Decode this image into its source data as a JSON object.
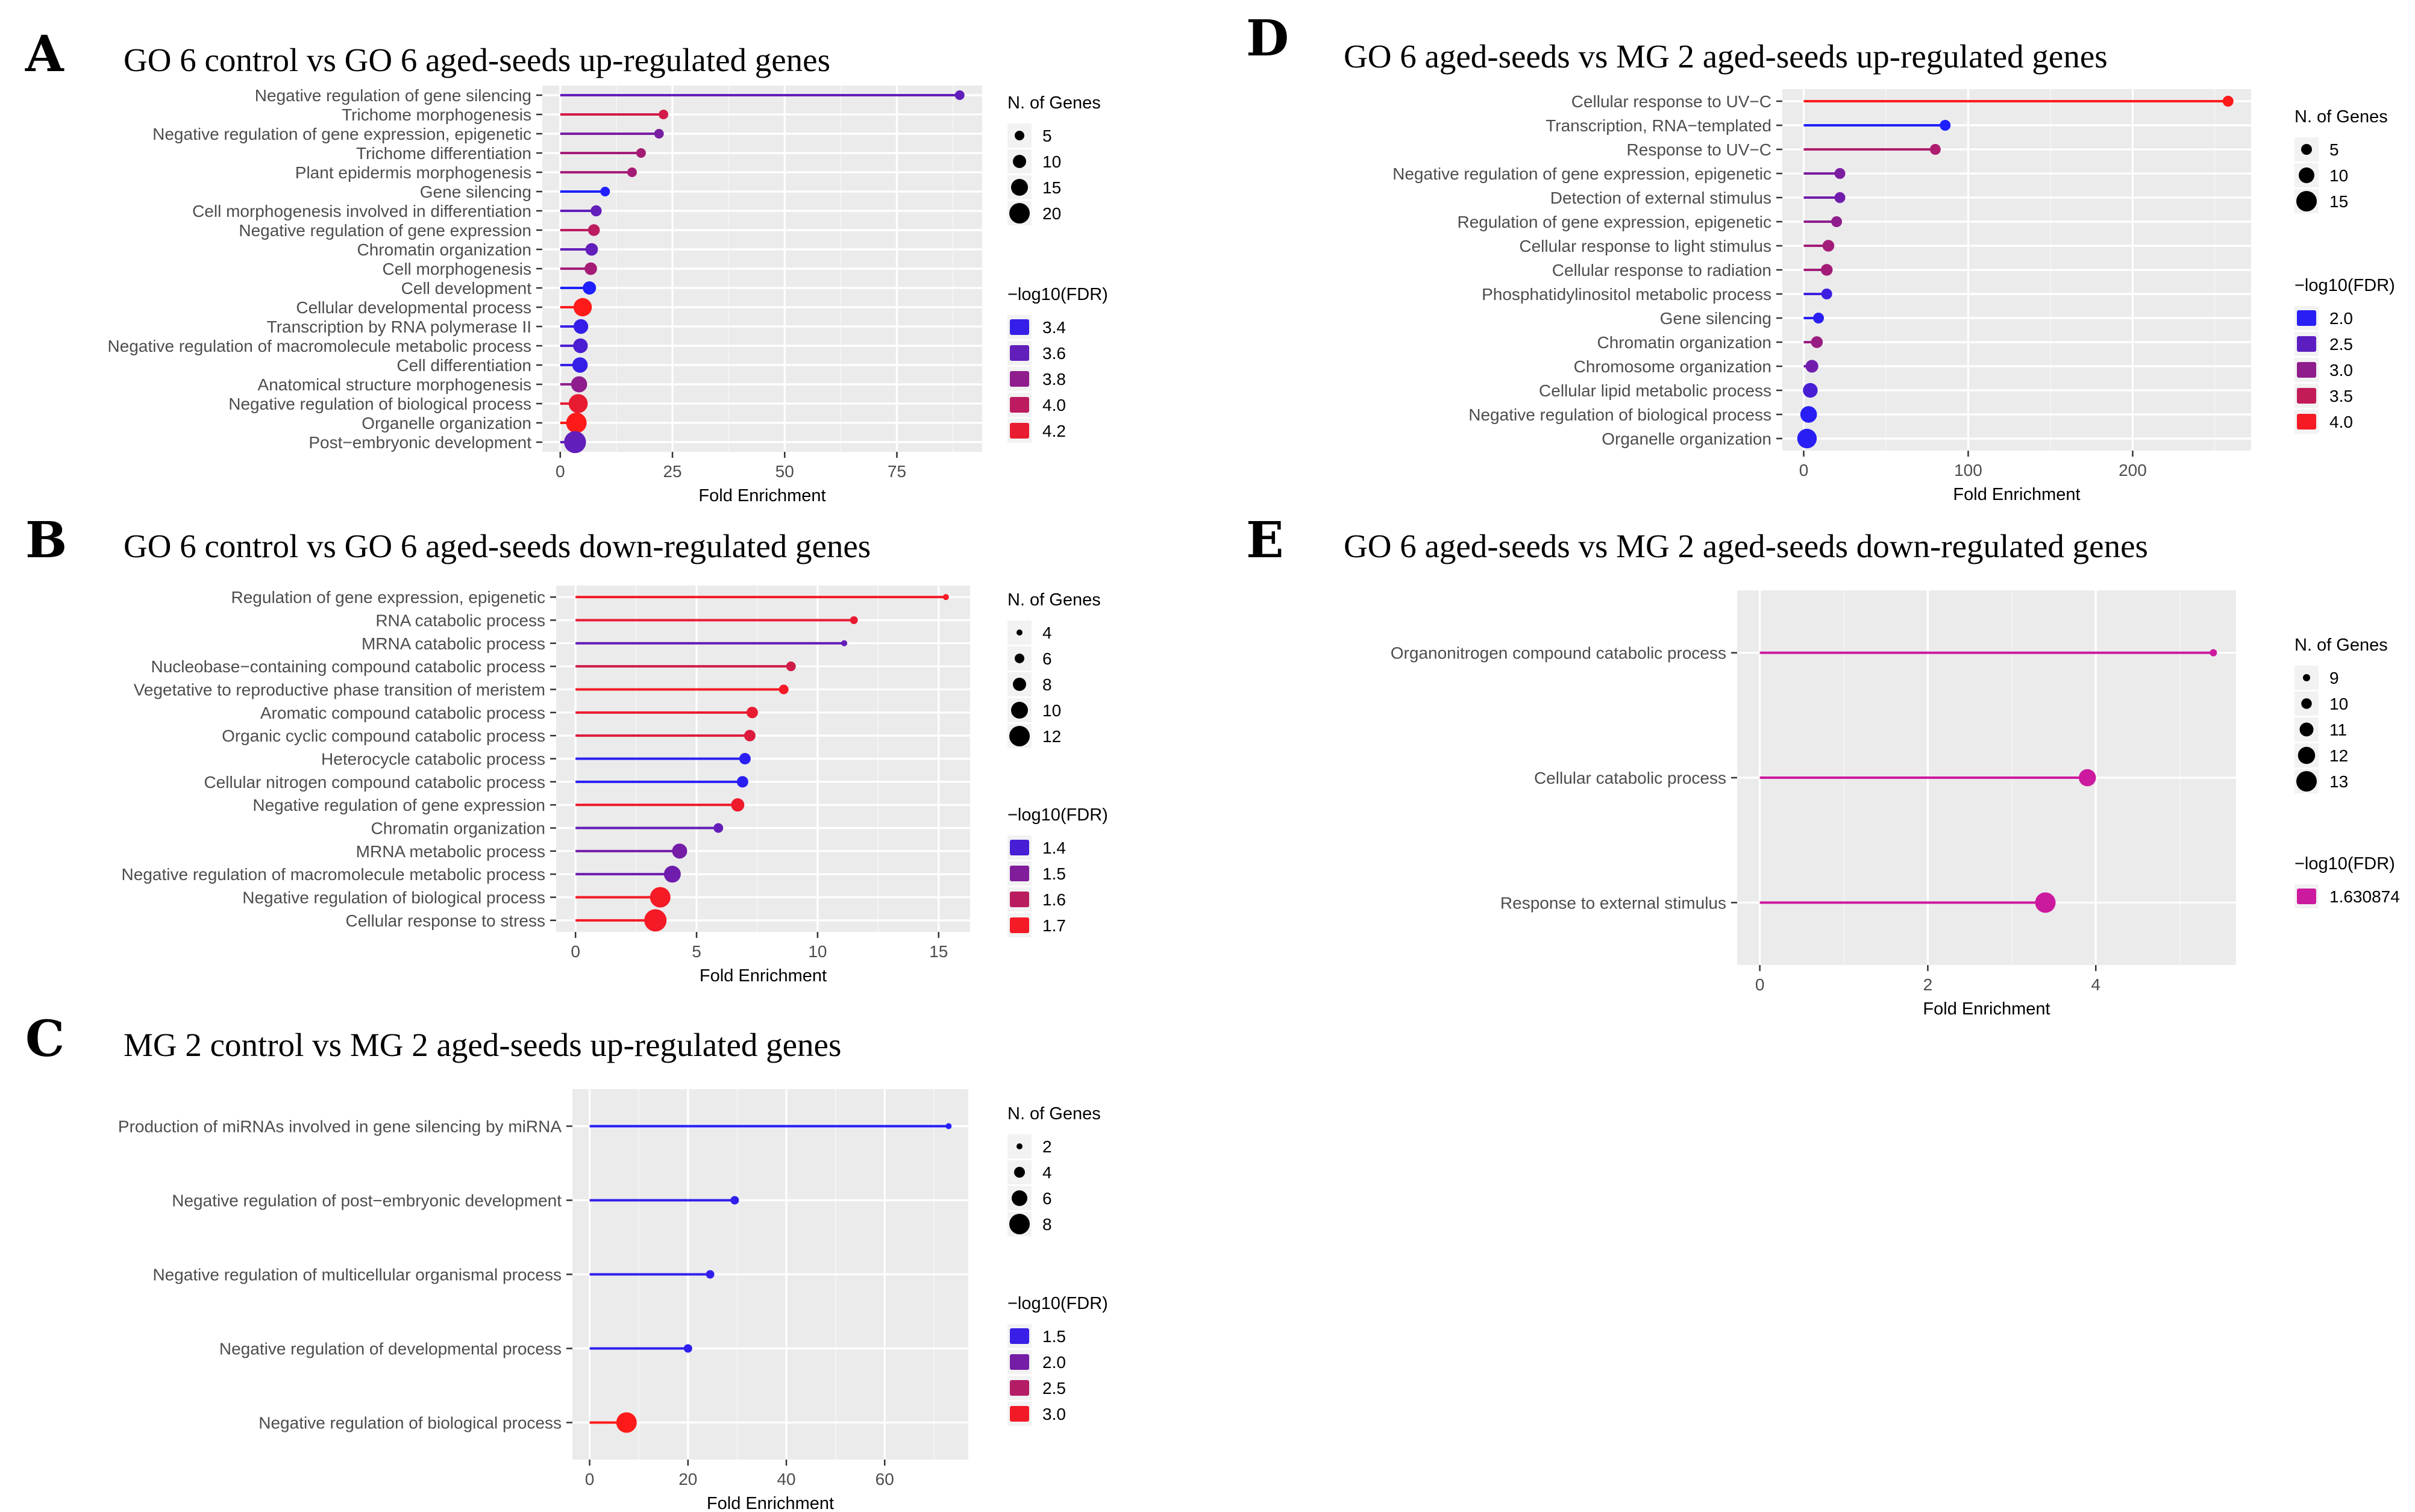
{
  "chart_data": [
    {
      "letter": "A",
      "type": "lollipop",
      "title": "GO 6 control vs GO 6 aged-seeds up-regulated genes",
      "xlabel": "Fold Enrichment",
      "xlim": [
        -4,
        94
      ],
      "xticks": [
        0,
        25,
        50,
        75
      ],
      "categories": [
        "Negative regulation of gene silencing",
        "Trichome morphogenesis",
        "Negative regulation of gene expression, epigenetic",
        "Trichome differentiation",
        "Plant epidermis morphogenesis",
        "Gene silencing",
        "Cell morphogenesis involved in differentiation",
        "Negative regulation of gene expression",
        "Chromatin organization",
        "Cell morphogenesis",
        "Cell development",
        "Cellular developmental process",
        "Transcription by RNA polymerase II",
        "Negative regulation of macromolecule metabolic process",
        "Cell differentiation",
        "Anatomical structure morphogenesis",
        "Negative regulation of biological process",
        "Organelle organization",
        "Post−embryonic development"
      ],
      "values": [
        89,
        23,
        22,
        18,
        16,
        10,
        8,
        7.5,
        7,
        6.8,
        6.5,
        5,
        4.6,
        4.5,
        4.4,
        4.2,
        4,
        3.6,
        3.3
      ],
      "genes": [
        5,
        5,
        5,
        5,
        5,
        5,
        7,
        8,
        9,
        9,
        10,
        17,
        12,
        12,
        13,
        14,
        18,
        20,
        22
      ],
      "fdr": [
        3.6,
        4.1,
        3.7,
        3.9,
        3.9,
        3.3,
        3.6,
        4.0,
        3.6,
        3.9,
        3.3,
        4.3,
        3.4,
        3.5,
        3.4,
        3.8,
        4.2,
        4.3,
        3.6
      ],
      "size_legend": {
        "title": "N. of Genes",
        "values": [
          5,
          10,
          15,
          20
        ],
        "labels": [
          "5",
          "10",
          "15",
          "20"
        ]
      },
      "color_legend": {
        "title": "−log10(FDR)",
        "values": [
          3.4,
          3.6,
          3.8,
          4.0,
          4.2
        ],
        "labels": [
          "3.4",
          "3.6",
          "3.8",
          "4.0",
          "4.2"
        ]
      },
      "color_scale": {
        "low": 3.3,
        "high": 4.3,
        "low_color": "#1f1fff",
        "high_color": "#ff1a1a"
      }
    },
    {
      "letter": "B",
      "type": "lollipop",
      "title": "GO 6 control vs GO 6 aged-seeds down-regulated genes",
      "xlabel": "Fold Enrichment",
      "xlim": [
        -0.8,
        16.3
      ],
      "xticks": [
        0,
        5,
        10,
        15
      ],
      "categories": [
        "Regulation of gene expression, epigenetic",
        "RNA catabolic process",
        "MRNA catabolic process",
        "Nucleobase−containing compound catabolic process",
        "Vegetative to reproductive phase transition of meristem",
        "Aromatic compound catabolic process",
        "Organic cyclic compound catabolic process",
        "Heterocycle catabolic process",
        "Cellular nitrogen compound catabolic process",
        "Negative regulation of gene expression",
        "Chromatin organization",
        "MRNA metabolic process",
        "Negative regulation of macromolecule metabolic process",
        "Negative regulation of biological process",
        "Cellular response to stress"
      ],
      "values": [
        15.3,
        11.5,
        11.1,
        8.9,
        8.6,
        7.3,
        7.2,
        7.0,
        6.9,
        6.7,
        5.9,
        4.3,
        4.0,
        3.5,
        3.3
      ],
      "genes": [
        4,
        5,
        3,
        6,
        6,
        7,
        7,
        7,
        7,
        8,
        6,
        9,
        10,
        12,
        13
      ],
      "fdr": [
        1.7,
        1.68,
        1.45,
        1.64,
        1.7,
        1.68,
        1.66,
        1.35,
        1.35,
        1.69,
        1.45,
        1.48,
        1.47,
        1.7,
        1.7
      ],
      "size_legend": {
        "title": "N. of Genes",
        "values": [
          4,
          6,
          8,
          10,
          12
        ],
        "labels": [
          "4",
          "6",
          "8",
          "10",
          "12"
        ]
      },
      "color_legend": {
        "title": "−log10(FDR)",
        "values": [
          1.4,
          1.5,
          1.6,
          1.7
        ],
        "labels": [
          "1.4",
          "1.5",
          "1.6",
          "1.7"
        ]
      },
      "color_scale": {
        "low": 1.33,
        "high": 1.72,
        "low_color": "#1f1fff",
        "high_color": "#ff1a1a"
      }
    },
    {
      "letter": "C",
      "type": "lollipop",
      "title": "MG 2 control vs MG 2 aged-seeds up-regulated genes",
      "xlabel": "Fold Enrichment",
      "xlim": [
        -3.5,
        77
      ],
      "xticks": [
        0,
        20,
        40,
        60
      ],
      "categories": [
        "Production of miRNAs involved in gene silencing by miRNA",
        "Negative regulation of post−embryonic development",
        "Negative regulation of multicellular organismal process",
        "Negative regulation of developmental process",
        "Negative regulation of biological process"
      ],
      "values": [
        73,
        29.5,
        24.5,
        20,
        7.5
      ],
      "genes": [
        2,
        3,
        3,
        3,
        8
      ],
      "fdr": [
        1.35,
        1.45,
        1.45,
        1.42,
        3.1
      ],
      "size_legend": {
        "title": "N. of Genes",
        "values": [
          2,
          4,
          6,
          8
        ],
        "labels": [
          "2",
          "4",
          "6",
          "8"
        ]
      },
      "color_legend": {
        "title": "−log10(FDR)",
        "values": [
          1.5,
          2.0,
          2.5,
          3.0
        ],
        "labels": [
          "1.5",
          "2.0",
          "2.5",
          "3.0"
        ]
      },
      "color_scale": {
        "low": 1.3,
        "high": 3.1,
        "low_color": "#1f1fff",
        "high_color": "#ff1a1a"
      }
    },
    {
      "letter": "D",
      "type": "lollipop",
      "title": "GO 6 aged-seeds vs MG 2 aged-seeds up-regulated genes",
      "xlabel": "Fold Enrichment",
      "xlim": [
        -13,
        272
      ],
      "xticks": [
        0,
        100,
        200
      ],
      "categories": [
        "Cellular response to UV−C",
        "Transcription, RNA−templated",
        "Response to UV−C",
        "Negative regulation of gene expression, epigenetic",
        "Detection of external stimulus",
        "Regulation of gene expression, epigenetic",
        "Cellular response to light stimulus",
        "Cellular response to radiation",
        "Phosphatidylinositol metabolic process",
        "Gene silencing",
        "Chromatin organization",
        "Chromosome organization",
        "Cellular lipid metabolic process",
        "Negative regulation of biological process",
        "Organelle organization"
      ],
      "values": [
        258,
        86,
        80,
        22,
        22,
        20,
        15,
        14,
        14,
        9,
        8,
        5,
        4,
        3,
        2
      ],
      "genes": [
        3,
        2,
        3,
        5,
        5,
        5,
        6,
        6,
        5,
        5,
        6,
        7,
        9,
        11,
        14
      ],
      "fdr": [
        4.1,
        1.9,
        3.3,
        2.8,
        2.7,
        3.0,
        3.2,
        3.2,
        2.2,
        2.0,
        3.1,
        2.7,
        2.3,
        2.0,
        2.0
      ],
      "size_legend": {
        "title": "N. of Genes",
        "values": [
          5,
          10,
          15
        ],
        "labels": [
          "5",
          "10",
          "15"
        ]
      },
      "color_legend": {
        "title": "−log10(FDR)",
        "values": [
          2.0,
          2.5,
          3.0,
          3.5,
          4.0
        ],
        "labels": [
          "2.0",
          "2.5",
          "3.0",
          "3.5",
          "4.0"
        ]
      },
      "color_scale": {
        "low": 1.9,
        "high": 4.1,
        "low_color": "#1f1fff",
        "high_color": "#ff1a1a"
      }
    },
    {
      "letter": "E",
      "type": "lollipop",
      "title": "GO 6 aged-seeds vs MG 2 aged-seeds down-regulated genes",
      "xlabel": "Fold Enrichment",
      "xlim": [
        -0.27,
        5.67
      ],
      "xticks": [
        0,
        2,
        4
      ],
      "categories": [
        "Organonitrogen compound catabolic process",
        "Cellular catabolic process",
        "Response to external stimulus"
      ],
      "values": [
        5.4,
        3.9,
        3.4
      ],
      "genes": [
        9,
        12,
        13
      ],
      "fdr": [
        1.630874,
        1.630874,
        1.630874
      ],
      "size_legend": {
        "title": "N. of Genes",
        "values": [
          9,
          10,
          11,
          12,
          13
        ],
        "labels": [
          "9",
          "10",
          "11",
          "12",
          "13"
        ]
      },
      "color_legend": {
        "title": "−log10(FDR)",
        "values": [
          1.630874
        ],
        "labels": [
          "1.630874"
        ]
      },
      "color_scale": {
        "low": 1.630874,
        "high": 1.630874,
        "low_color": "#cc1a9e",
        "high_color": "#cc1a9e"
      }
    }
  ]
}
